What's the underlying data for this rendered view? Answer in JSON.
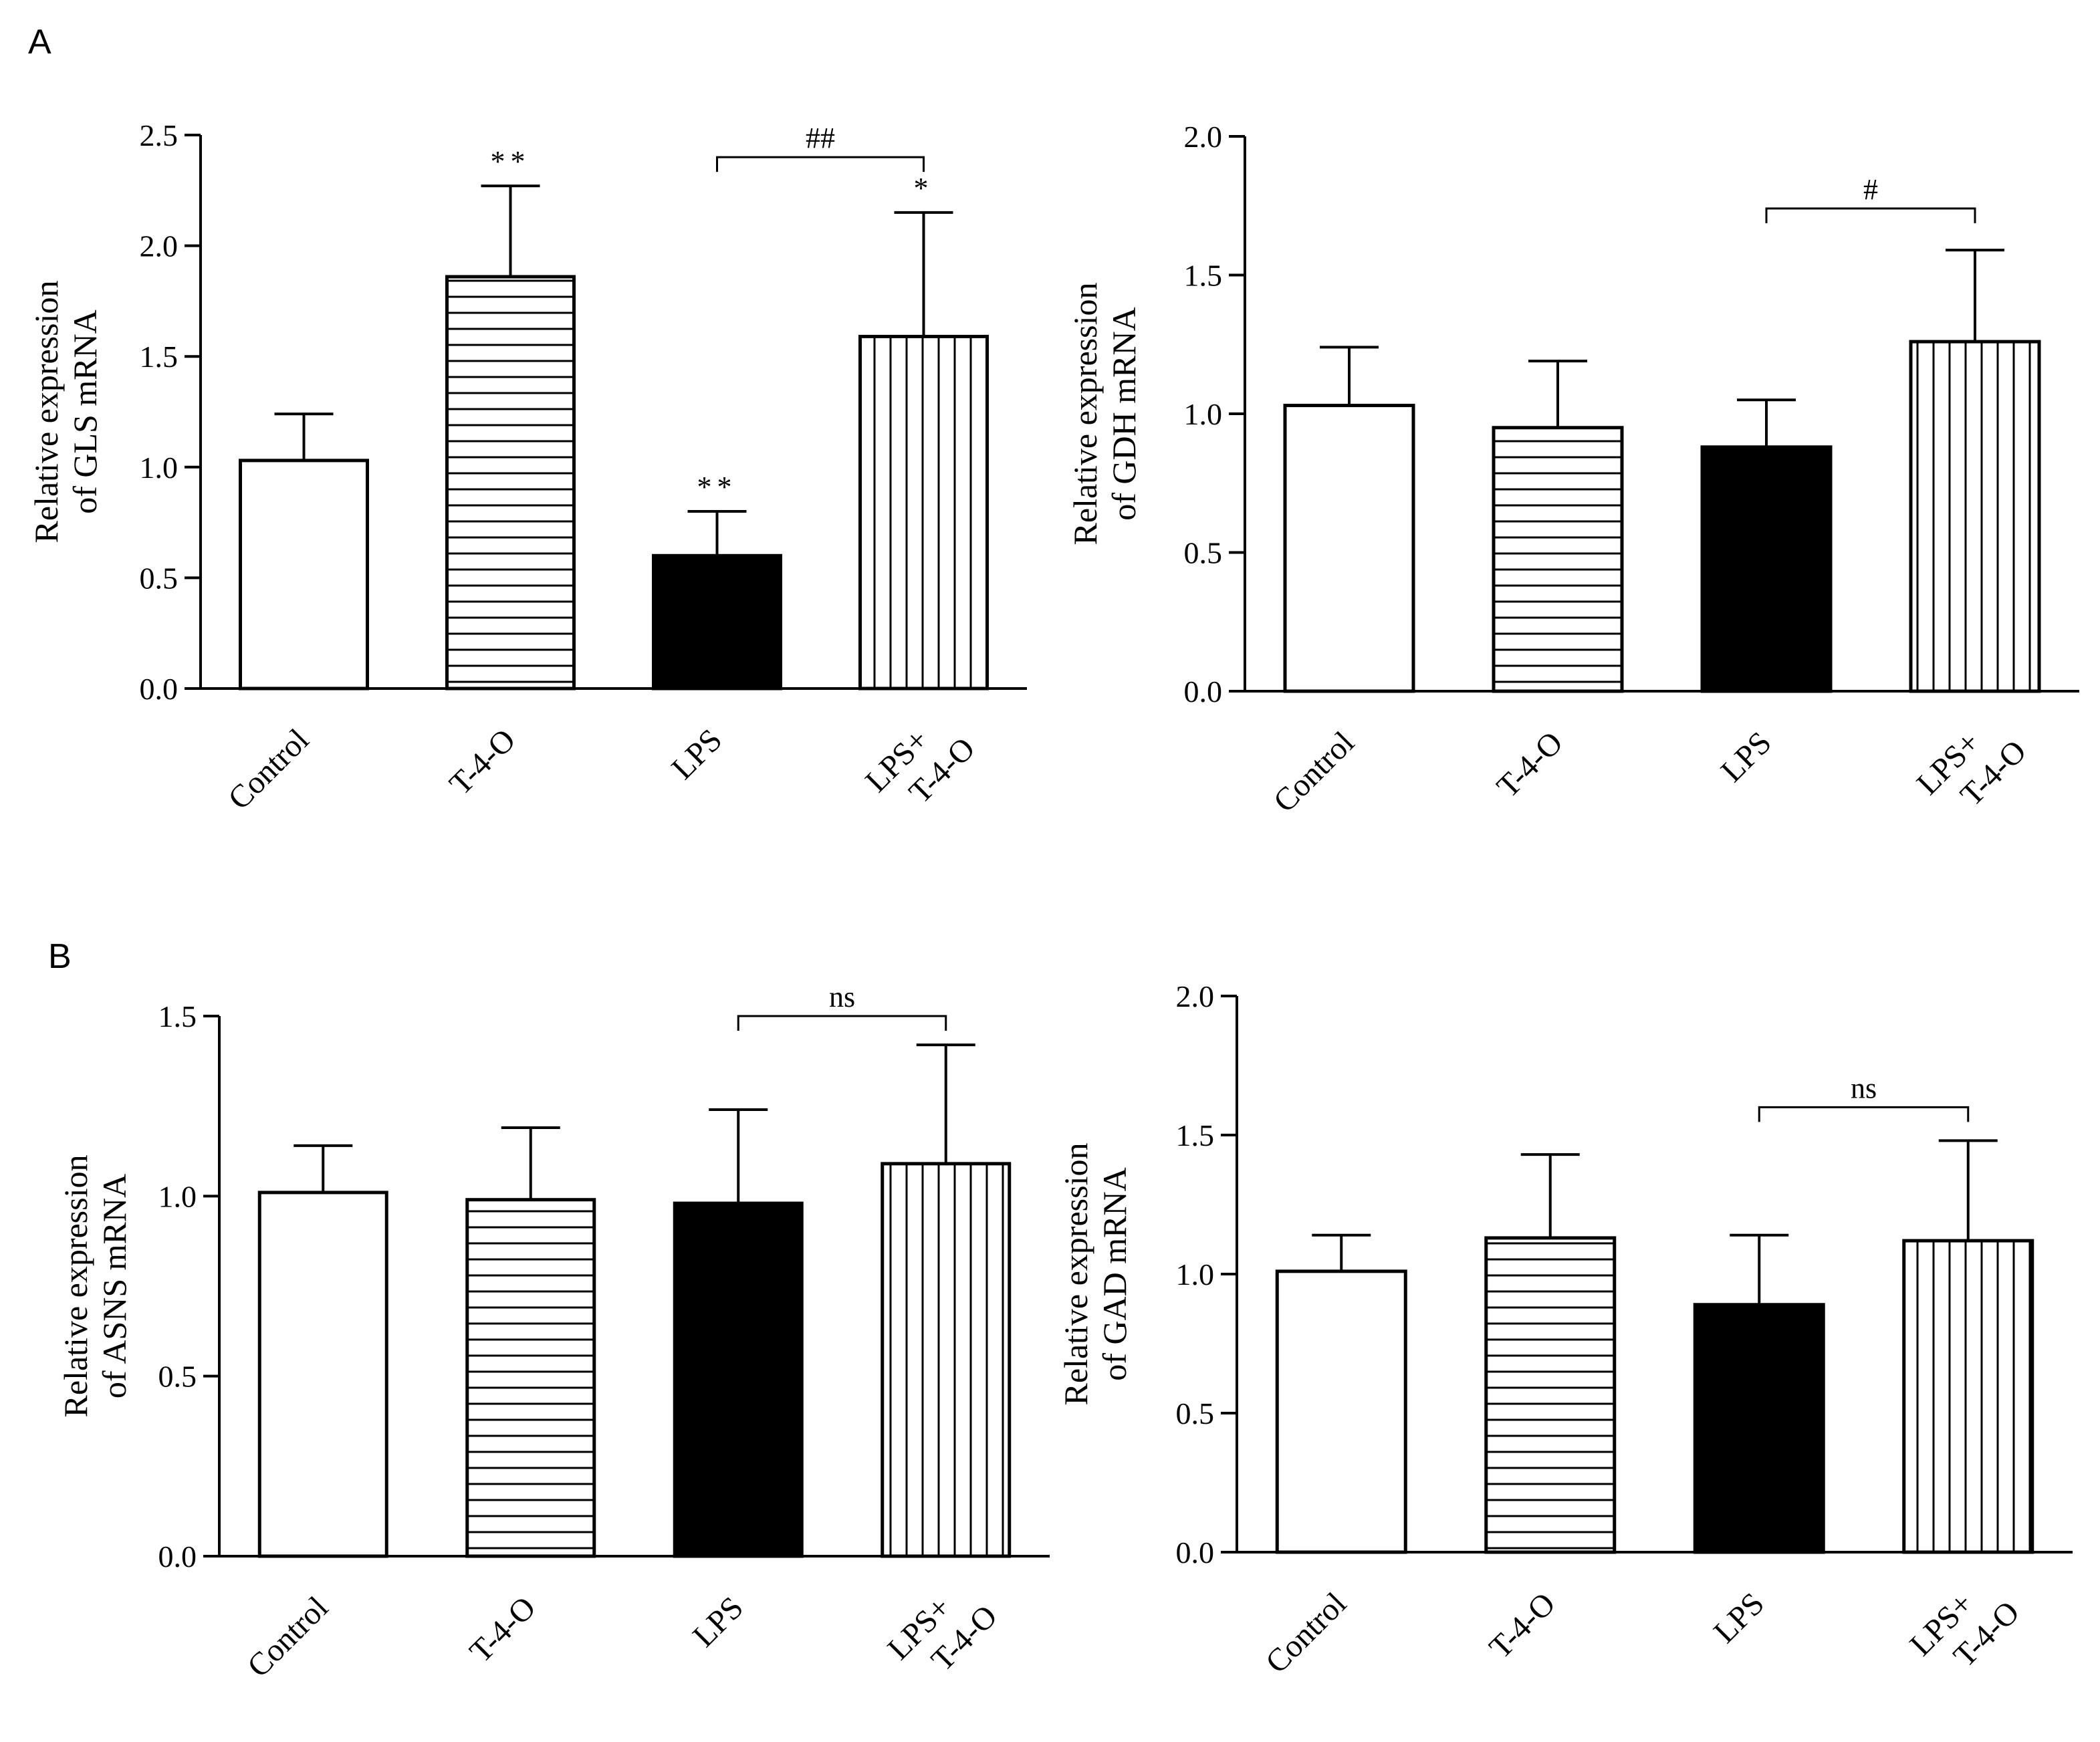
{
  "figure": {
    "panel_labels": [
      "A",
      "B"
    ]
  },
  "chart_data": [
    {
      "type": "bar",
      "panel": "A",
      "title": "",
      "xlabel": "",
      "ylabel": [
        "Relative expression",
        "of GLS mRNA"
      ],
      "ylim": [
        0,
        2.5
      ],
      "yticks": [
        "0.0",
        "0.5",
        "1.0",
        "1.5",
        "2.0",
        "2.5"
      ],
      "ytick_values": [
        0,
        0.5,
        1.0,
        1.5,
        2.0,
        2.5
      ],
      "categories": [
        [
          "Control"
        ],
        [
          "T-4-O"
        ],
        [
          "LPS"
        ],
        [
          "LPS+",
          "T-4-O"
        ]
      ],
      "values": [
        1.03,
        1.86,
        0.6,
        1.59
      ],
      "errors": [
        0.21,
        0.41,
        0.2,
        0.56
      ],
      "patterns": [
        "open",
        "horizontal",
        "solid",
        "vertical"
      ],
      "stars": [
        "",
        "**",
        "**",
        "*"
      ],
      "bracket": {
        "from": 2,
        "to": 3,
        "label": "##",
        "y": 2.4
      }
    },
    {
      "type": "bar",
      "panel": "A",
      "title": "",
      "xlabel": "",
      "ylabel": [
        "Relative expression",
        "of GDH mRNA"
      ],
      "ylim": [
        0,
        2.0
      ],
      "yticks": [
        "0.0",
        "0.5",
        "1.0",
        "1.5",
        "2.0"
      ],
      "ytick_values": [
        0,
        0.5,
        1.0,
        1.5,
        2.0
      ],
      "categories": [
        [
          "Control"
        ],
        [
          "T-4-O"
        ],
        [
          "LPS"
        ],
        [
          "LPS+",
          "T-4-O"
        ]
      ],
      "values": [
        1.03,
        0.95,
        0.88,
        1.26
      ],
      "errors": [
        0.21,
        0.24,
        0.17,
        0.33
      ],
      "patterns": [
        "open",
        "horizontal",
        "solid",
        "vertical"
      ],
      "stars": [
        "",
        "",
        "",
        ""
      ],
      "bracket": {
        "from": 2,
        "to": 3,
        "label": "#",
        "y": 1.74
      }
    },
    {
      "type": "bar",
      "panel": "B",
      "title": "",
      "xlabel": "",
      "ylabel": [
        "Relative expression",
        "of ASNS mRNA"
      ],
      "ylim": [
        0,
        1.5
      ],
      "yticks": [
        "0.0",
        "0.5",
        "1.0",
        "1.5"
      ],
      "ytick_values": [
        0,
        0.5,
        1.0,
        1.5
      ],
      "categories": [
        [
          "Control"
        ],
        [
          "T-4-O"
        ],
        [
          "LPS"
        ],
        [
          "LPS+",
          "T-4-O"
        ]
      ],
      "values": [
        1.01,
        0.99,
        0.98,
        1.09
      ],
      "errors": [
        0.13,
        0.2,
        0.26,
        0.33
      ],
      "patterns": [
        "open",
        "horizontal",
        "solid",
        "vertical"
      ],
      "stars": [
        "",
        "",
        "",
        ""
      ],
      "bracket": {
        "from": 2,
        "to": 3,
        "label": "ns",
        "y": 1.5
      }
    },
    {
      "type": "bar",
      "panel": "B",
      "title": "",
      "xlabel": "",
      "ylabel": [
        "Relative expression",
        "of GAD mRNA"
      ],
      "ylim": [
        0,
        2.0
      ],
      "yticks": [
        "0.0",
        "0.5",
        "1.0",
        "1.5",
        "2.0"
      ],
      "ytick_values": [
        0,
        0.5,
        1.0,
        1.5,
        2.0
      ],
      "categories": [
        [
          "Control"
        ],
        [
          "T-4-O"
        ],
        [
          "LPS"
        ],
        [
          "LPS+",
          "T-4-O"
        ]
      ],
      "values": [
        1.01,
        1.13,
        0.89,
        1.12
      ],
      "errors": [
        0.13,
        0.3,
        0.25,
        0.36
      ],
      "patterns": [
        "open",
        "horizontal",
        "solid",
        "vertical"
      ],
      "stars": [
        "",
        "",
        "",
        ""
      ],
      "bracket": {
        "from": 2,
        "to": 3,
        "label": "ns",
        "y": 1.6
      }
    }
  ]
}
